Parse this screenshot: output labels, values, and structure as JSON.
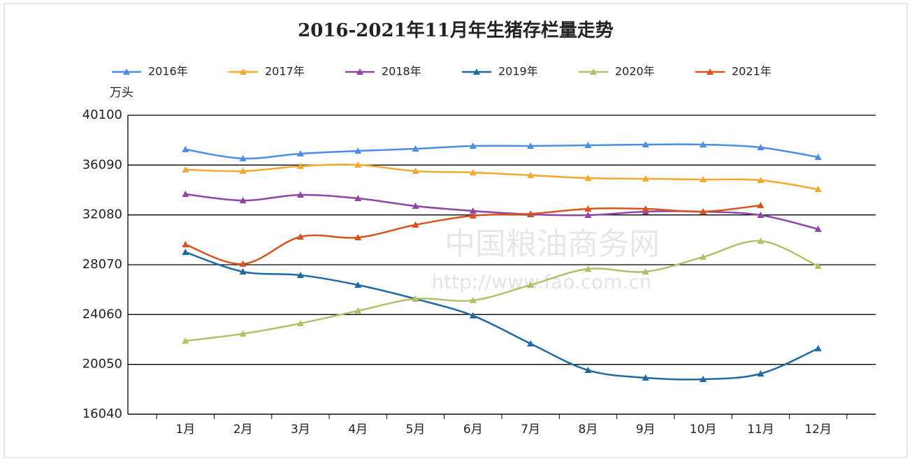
{
  "chart_data": {
    "type": "line",
    "title": "2016-2021年11月年生猪存栏量走势",
    "y_label": "万头",
    "watermark": [
      "中国粮油商务网",
      "http://www.fao.com.cn"
    ],
    "categories": [
      "1月",
      "2月",
      "3月",
      "4月",
      "5月",
      "6月",
      "7月",
      "8月",
      "9月",
      "10月",
      "11月",
      "12月"
    ],
    "series": [
      {
        "name": "2016年",
        "color": "#4a8ee6",
        "values": [
          37350,
          36620,
          37010,
          37230,
          37400,
          37630,
          37630,
          37680,
          37740,
          37740,
          37510,
          36730
        ]
      },
      {
        "name": "2017年",
        "color": "#f5a82e",
        "values": [
          35720,
          35600,
          36000,
          36110,
          35600,
          35490,
          35270,
          35040,
          34990,
          34930,
          34870,
          34140
        ]
      },
      {
        "name": "2018年",
        "color": "#8e44a8",
        "values": [
          33750,
          33240,
          33690,
          33410,
          32790,
          32400,
          32120,
          32060,
          32340,
          32340,
          32060,
          30940
        ]
      },
      {
        "name": "2019年",
        "color": "#1f6aa5",
        "values": [
          29080,
          27510,
          27230,
          26440,
          25320,
          23970,
          21720,
          19580,
          18970,
          18850,
          19300,
          21330
        ]
      },
      {
        "name": "2020年",
        "color": "#b5bf6a",
        "values": [
          21940,
          22510,
          23350,
          24360,
          25320,
          25200,
          26440,
          27730,
          27510,
          28690,
          29980,
          27960
        ]
      },
      {
        "name": "2021年",
        "color": "#d9531e",
        "values": [
          29700,
          28130,
          30320,
          30260,
          31280,
          32010,
          32170,
          32570,
          32570,
          32340,
          32850,
          null
        ]
      }
    ],
    "ylim": [
      16040,
      40100
    ],
    "yticks": [
      16040,
      20050,
      24060,
      28070,
      32080,
      36090,
      40100
    ],
    "grid": true
  }
}
